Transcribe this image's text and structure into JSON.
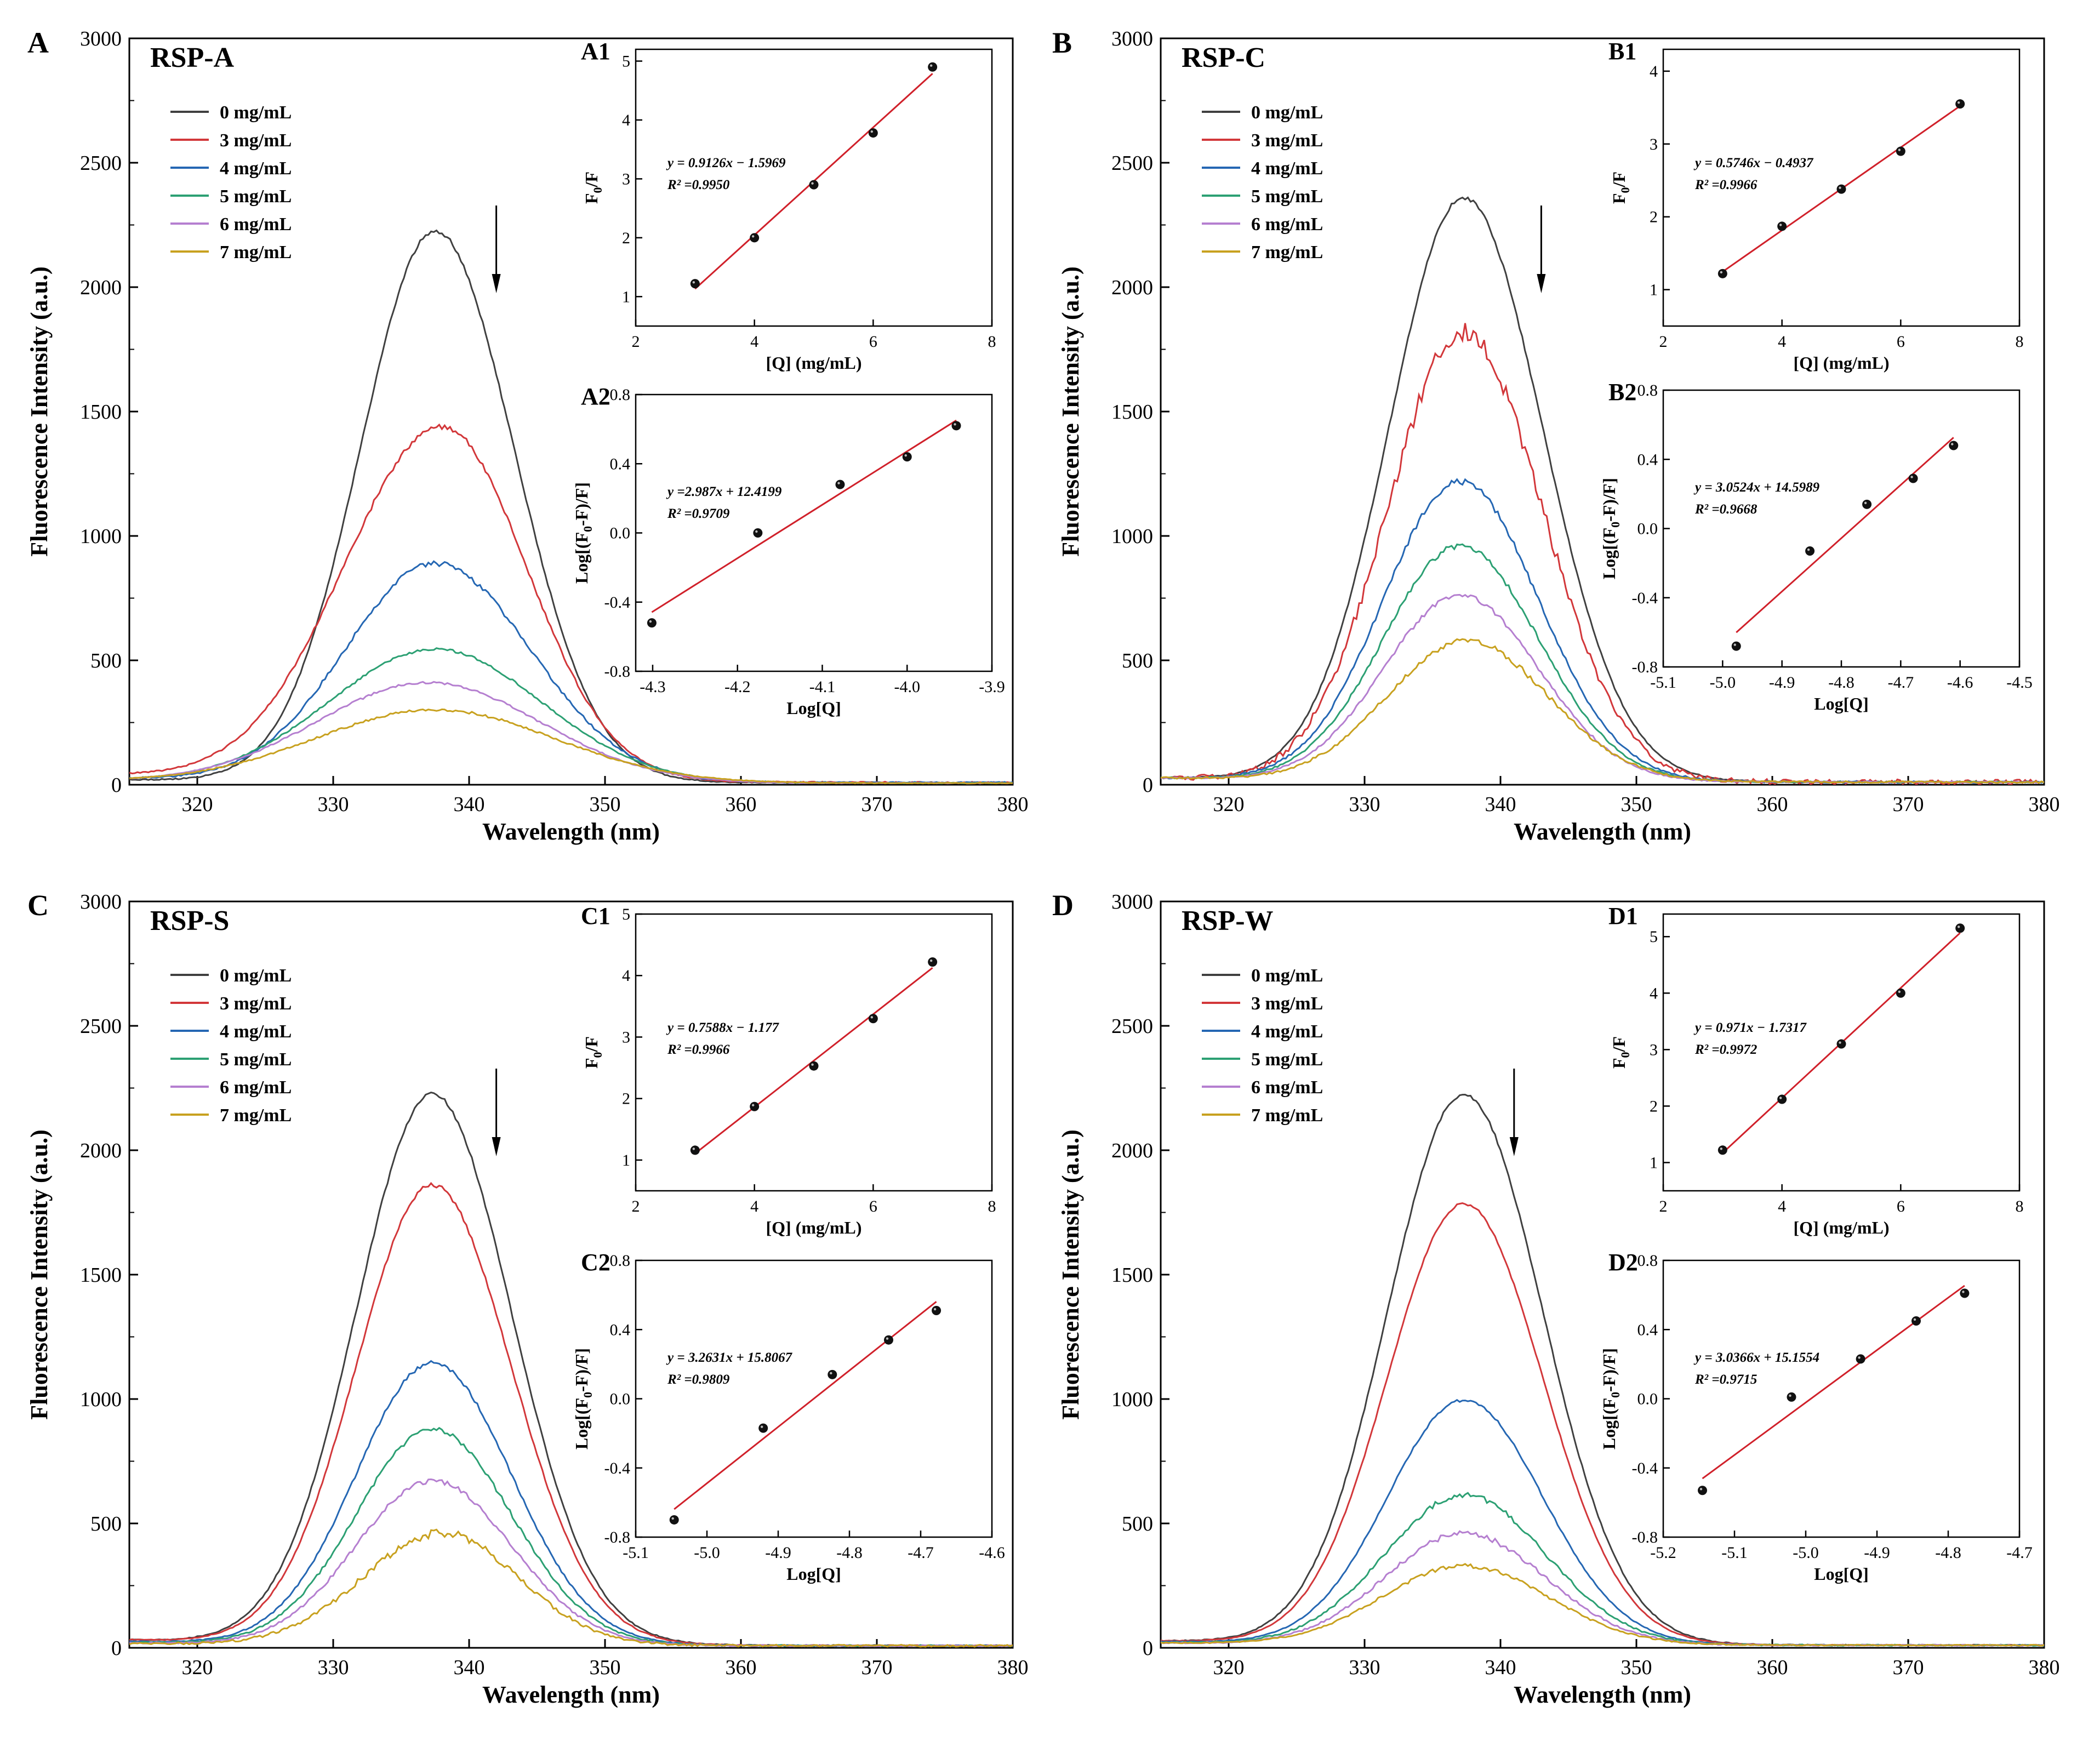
{
  "colors": {
    "0 mg/mL": "#404040",
    "3 mg/mL": "#d2373a",
    "4 mg/mL": "#2567b3",
    "5 mg/mL": "#2ca073",
    "6 mg/mL": "#b57fd0",
    "7 mg/mL": "#c8a11f",
    "fit": "#d0202a",
    "point": "#111111"
  },
  "chart_data": [
    {
      "type": "line",
      "panel_letter": "A",
      "title": "RSP-A",
      "xlabel": "Wavelength (nm)",
      "ylabel": "Fluorescence Intensity (a.u.)",
      "xlim": [
        315,
        380
      ],
      "ylim": [
        0,
        3000
      ],
      "x_ticks": [
        "320",
        "330",
        "340",
        "350",
        "360",
        "370",
        "380"
      ],
      "y_ticks": [
        "0",
        "500",
        "1000",
        "1500",
        "2000",
        "2500",
        "3000"
      ],
      "series": [
        {
          "name": "0 mg/mL",
          "peak_x": 337.5,
          "peak": 2225,
          "base": 20,
          "tail": 8,
          "wl": 5.5,
          "wr": 5.8,
          "noise": 6
        },
        {
          "name": "3 mg/mL",
          "peak_x": 338,
          "peak": 1440,
          "base": 38,
          "tail": 8,
          "wl": 7.2,
          "wr": 6.2,
          "noise": 8
        },
        {
          "name": "4 mg/mL",
          "peak_x": 337.5,
          "peak": 890,
          "base": 25,
          "tail": 8,
          "wl": 6.6,
          "wr": 7.0,
          "noise": 8
        },
        {
          "name": "5 mg/mL",
          "peak_x": 337.5,
          "peak": 545,
          "base": 18,
          "tail": 6,
          "wl": 7.8,
          "wr": 7.8,
          "noise": 4
        },
        {
          "name": "6 mg/mL",
          "peak_x": 337,
          "peak": 412,
          "base": 15,
          "tail": 6,
          "wl": 8.2,
          "wr": 8.2,
          "noise": 4
        },
        {
          "name": "7 mg/mL",
          "peak_x": 337.5,
          "peak": 302,
          "base": 15,
          "tail": 6,
          "wl": 8.8,
          "wr": 8.8,
          "noise": 4
        }
      ],
      "arrow_x": 342
    },
    {
      "type": "line",
      "panel_letter": "B",
      "title": "RSP-C",
      "xlabel": "Wavelength (nm)",
      "ylabel": "Fluorescence Intensity (a.u.)",
      "xlim": [
        315,
        380
      ],
      "ylim": [
        0,
        3000
      ],
      "x_ticks": [
        "320",
        "330",
        "340",
        "350",
        "360",
        "370",
        "380"
      ],
      "y_ticks": [
        "0",
        "500",
        "1000",
        "1500",
        "2000",
        "2500",
        "3000"
      ],
      "series": [
        {
          "name": "0 mg/mL",
          "peak_x": 337.3,
          "peak": 2360,
          "base": 28,
          "tail": 10,
          "wl": 5.5,
          "wr": 5.8,
          "noise": 6
        },
        {
          "name": "3 mg/mL",
          "peak_x": 337.3,
          "peak": 1820,
          "base": 28,
          "tail": 10,
          "wl": 5.6,
          "wr": 5.8,
          "noise": 30
        },
        {
          "name": "4 mg/mL",
          "peak_x": 337,
          "peak": 1220,
          "base": 28,
          "tail": 10,
          "wl": 5.6,
          "wr": 5.8,
          "noise": 10
        },
        {
          "name": "5 mg/mL",
          "peak_x": 337,
          "peak": 960,
          "base": 28,
          "tail": 10,
          "wl": 5.6,
          "wr": 5.8,
          "noise": 8
        },
        {
          "name": "6 mg/mL",
          "peak_x": 337,
          "peak": 760,
          "base": 28,
          "tail": 10,
          "wl": 5.6,
          "wr": 5.8,
          "noise": 8
        },
        {
          "name": "7 mg/mL",
          "peak_x": 337.5,
          "peak": 580,
          "base": 28,
          "tail": 10,
          "wl": 5.8,
          "wr": 6.0,
          "noise": 10
        }
      ],
      "arrow_x": 343
    },
    {
      "type": "line",
      "panel_letter": "C",
      "title": "RSP-S",
      "xlabel": "Wavelength (nm)",
      "ylabel": "Fluorescence Intensity (a.u.)",
      "xlim": [
        315,
        380
      ],
      "ylim": [
        0,
        3000
      ],
      "x_ticks": [
        "320",
        "330",
        "340",
        "350",
        "360",
        "370",
        "380"
      ],
      "y_ticks": [
        "0",
        "500",
        "1000",
        "1500",
        "2000",
        "2500",
        "3000"
      ],
      "series": [
        {
          "name": "0 mg/mL",
          "peak_x": 337.3,
          "peak": 2225,
          "base": 32,
          "tail": 8,
          "wl": 5.6,
          "wr": 5.8,
          "noise": 6
        },
        {
          "name": "3 mg/mL",
          "peak_x": 337.3,
          "peak": 1860,
          "base": 32,
          "tail": 8,
          "wl": 5.6,
          "wr": 5.8,
          "noise": 6
        },
        {
          "name": "4 mg/mL",
          "peak_x": 337.3,
          "peak": 1145,
          "base": 25,
          "tail": 8,
          "wl": 5.6,
          "wr": 5.8,
          "noise": 6
        },
        {
          "name": "5 mg/mL",
          "peak_x": 337.3,
          "peak": 880,
          "base": 22,
          "tail": 8,
          "wl": 5.6,
          "wr": 5.8,
          "noise": 8
        },
        {
          "name": "6 mg/mL",
          "peak_x": 337.3,
          "peak": 672,
          "base": 20,
          "tail": 8,
          "wl": 5.6,
          "wr": 5.8,
          "noise": 8
        },
        {
          "name": "7 mg/mL",
          "peak_x": 338,
          "peak": 462,
          "base": 18,
          "tail": 8,
          "wl": 5.8,
          "wr": 5.6,
          "noise": 12
        }
      ],
      "arrow_x": 342
    },
    {
      "type": "line",
      "panel_letter": "D",
      "title": "RSP-W",
      "xlabel": "Wavelength (nm)",
      "ylabel": "Fluorescence Intensity (a.u.)",
      "xlim": [
        315,
        380
      ],
      "ylim": [
        0,
        3000
      ],
      "x_ticks": [
        "320",
        "330",
        "340",
        "350",
        "360",
        "370",
        "380"
      ],
      "y_ticks": [
        "0",
        "500",
        "1000",
        "1500",
        "2000",
        "2500",
        "3000"
      ],
      "series": [
        {
          "name": "0 mg/mL",
          "peak_x": 337.3,
          "peak": 2225,
          "base": 28,
          "tail": 10,
          "wl": 5.6,
          "wr": 5.8,
          "noise": 6
        },
        {
          "name": "3 mg/mL",
          "peak_x": 337.3,
          "peak": 1785,
          "base": 28,
          "tail": 10,
          "wl": 5.6,
          "wr": 5.8,
          "noise": 4
        },
        {
          "name": "4 mg/mL",
          "peak_x": 337.3,
          "peak": 995,
          "base": 25,
          "tail": 10,
          "wl": 5.6,
          "wr": 5.8,
          "noise": 4
        },
        {
          "name": "5 mg/mL",
          "peak_x": 337.3,
          "peak": 615,
          "base": 22,
          "tail": 10,
          "wl": 5.8,
          "wr": 6.0,
          "noise": 8
        },
        {
          "name": "6 mg/mL",
          "peak_x": 337.3,
          "peak": 460,
          "base": 20,
          "tail": 10,
          "wl": 5.8,
          "wr": 6.0,
          "noise": 8
        },
        {
          "name": "7 mg/mL",
          "peak_x": 337.3,
          "peak": 330,
          "base": 20,
          "tail": 10,
          "wl": 6.0,
          "wr": 6.2,
          "noise": 6
        }
      ],
      "arrow_x": 341
    },
    {
      "type": "scatter",
      "label": "A1",
      "xlabel": "[Q] (mg/mL)",
      "ylabel": "F0/F",
      "xlim": [
        2,
        8
      ],
      "ylim": [
        0.5,
        5.2
      ],
      "x_ticks": [
        "2",
        "4",
        "6",
        "8"
      ],
      "y_ticks": [
        "1",
        "2",
        "3",
        "4",
        "5"
      ],
      "x": [
        3,
        4,
        5,
        6,
        7
      ],
      "y": [
        1.22,
        2.0,
        2.9,
        3.78,
        4.9
      ],
      "fit": {
        "slope": 0.9126,
        "intercept": -1.5969,
        "equation": "y = 0.9126x − 1.5969",
        "r2": "R² =0.9950"
      }
    },
    {
      "type": "scatter",
      "label": "A2",
      "xlabel": "Log[Q]",
      "ylabel": "Log[(F0-F)/F]",
      "xlim": [
        -4.32,
        -3.9
      ],
      "ylim": [
        -0.8,
        0.8
      ],
      "x_ticks": [
        "-4.3",
        "-4.2",
        "-4.1",
        "-4.0",
        "-3.9"
      ],
      "y_ticks": [
        "-0.8",
        "-0.4",
        "0.0",
        "0.4",
        "0.8"
      ],
      "x": [
        -4.301,
        -4.176,
        -4.079,
        -4.0,
        -3.942
      ],
      "y": [
        -0.52,
        0.0,
        0.28,
        0.44,
        0.62
      ],
      "fit": {
        "slope": 2.987,
        "intercept": 12.4199,
        "equation": "y =2.987x + 12.4199",
        "r2": "R² =0.9709"
      }
    },
    {
      "type": "scatter",
      "label": "B1",
      "xlabel": "[Q] (mg/mL)",
      "ylabel": "F0/F",
      "xlim": [
        2,
        8
      ],
      "ylim": [
        0.5,
        4.3
      ],
      "x_ticks": [
        "2",
        "4",
        "6",
        "8"
      ],
      "y_ticks": [
        "1",
        "2",
        "3",
        "4"
      ],
      "x": [
        3,
        4,
        5,
        6,
        7
      ],
      "y": [
        1.22,
        1.87,
        2.38,
        2.9,
        3.55
      ],
      "fit": {
        "slope": 0.5746,
        "intercept": -0.4937,
        "equation": "y = 0.5746x − 0.4937",
        "r2": "R² =0.9966"
      }
    },
    {
      "type": "scatter",
      "label": "B2",
      "xlabel": "Log[Q]",
      "ylabel": "Log[(F0-F)/F]",
      "xlim": [
        -5.1,
        -4.5
      ],
      "ylim": [
        -0.8,
        0.8
      ],
      "x_ticks": [
        "-5.1",
        "-5.0",
        "-4.9",
        "-4.8",
        "-4.7",
        "-4.6",
        "-4.5"
      ],
      "y_ticks": [
        "-0.8",
        "-0.4",
        "0.0",
        "0.4",
        "0.8"
      ],
      "x": [
        -4.977,
        -4.853,
        -4.757,
        -4.679,
        -4.611
      ],
      "y": [
        -0.68,
        -0.13,
        0.14,
        0.29,
        0.48
      ],
      "fit": {
        "slope": 3.0524,
        "intercept": 14.5989,
        "equation": "y = 3.0524x + 14.5989",
        "r2": "R² =0.9668"
      }
    },
    {
      "type": "scatter",
      "label": "C1",
      "xlabel": "[Q] (mg/mL)",
      "ylabel": "F0/F",
      "xlim": [
        2,
        8
      ],
      "ylim": [
        0.5,
        5.0
      ],
      "x_ticks": [
        "2",
        "4",
        "6",
        "8"
      ],
      "y_ticks": [
        "1",
        "2",
        "3",
        "4",
        "5"
      ],
      "x": [
        3,
        4,
        5,
        6,
        7
      ],
      "y": [
        1.16,
        1.87,
        2.53,
        3.3,
        4.22
      ],
      "fit": {
        "slope": 0.7588,
        "intercept": -1.177,
        "equation": "y = 0.7588x − 1.177",
        "r2": "R² =0.9966"
      }
    },
    {
      "type": "scatter",
      "label": "C2",
      "xlabel": "Log[Q]",
      "ylabel": "Log[(F0-F)/F]",
      "xlim": [
        -5.1,
        -4.6
      ],
      "ylim": [
        -0.8,
        0.8
      ],
      "x_ticks": [
        "-5.1",
        "-5.0",
        "-4.9",
        "-4.8",
        "-4.7",
        "-4.6"
      ],
      "y_ticks": [
        "-0.8",
        "-0.4",
        "0.0",
        "0.4",
        "0.8"
      ],
      "x": [
        -5.046,
        -4.921,
        -4.824,
        -4.745,
        -4.678
      ],
      "y": [
        -0.7,
        -0.17,
        0.14,
        0.34,
        0.51
      ],
      "fit": {
        "slope": 3.2631,
        "intercept": 15.8067,
        "equation": "y = 3.2631x + 15.8067",
        "r2": "R² =0.9809"
      }
    },
    {
      "type": "scatter",
      "label": "D1",
      "xlabel": "[Q] (mg/mL)",
      "ylabel": "F0/F",
      "xlim": [
        2,
        8
      ],
      "ylim": [
        0.5,
        5.4
      ],
      "x_ticks": [
        "2",
        "4",
        "6",
        "8"
      ],
      "y_ticks": [
        "1",
        "2",
        "3",
        "4",
        "5"
      ],
      "x": [
        3,
        4,
        5,
        6,
        7
      ],
      "y": [
        1.22,
        2.12,
        3.1,
        4.0,
        5.15
      ],
      "fit": {
        "slope": 0.971,
        "intercept": -1.7317,
        "equation": "y = 0.971x − 1.7317",
        "r2": "R² =0.9972"
      }
    },
    {
      "type": "scatter",
      "label": "D2",
      "xlabel": "Log[Q]",
      "ylabel": "Log[(F0-F)/F]",
      "xlim": [
        -5.2,
        -4.7
      ],
      "ylim": [
        -0.8,
        0.8
      ],
      "x_ticks": [
        "-5.2",
        "-5.1",
        "-5.0",
        "-4.9",
        "-4.8",
        "-4.7"
      ],
      "y_ticks": [
        "-0.8",
        "-0.4",
        "0.0",
        "0.4",
        "0.8"
      ],
      "x": [
        -5.145,
        -5.02,
        -4.923,
        -4.845,
        -4.777
      ],
      "y": [
        -0.53,
        0.01,
        0.23,
        0.45,
        0.61
      ],
      "fit": {
        "slope": 3.0366,
        "intercept": 15.1554,
        "equation": "y = 3.0366x + 15.1554",
        "r2": "R² =0.9715"
      }
    }
  ]
}
